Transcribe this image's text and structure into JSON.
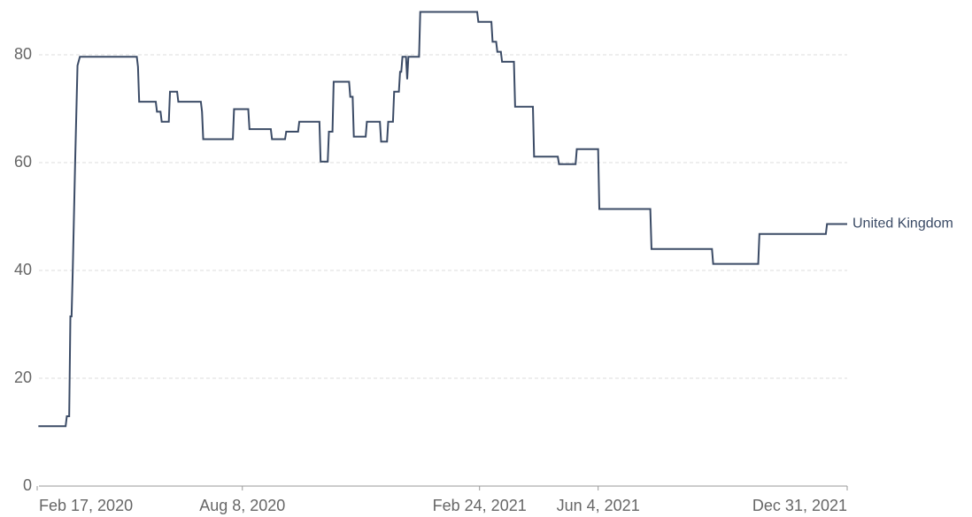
{
  "chart_data": {
    "type": "line",
    "x": [
      "2020-02-18",
      "2020-03-12",
      "2020-03-13",
      "2020-03-15",
      "2020-03-16",
      "2020-03-17",
      "2020-03-18",
      "2020-03-20",
      "2020-03-22",
      "2020-03-24",
      "2020-05-11",
      "2020-05-12",
      "2020-05-13",
      "2020-05-27",
      "2020-05-28",
      "2020-05-31",
      "2020-06-01",
      "2020-06-07",
      "2020-06-08",
      "2020-06-14",
      "2020-06-15",
      "2020-07-04",
      "2020-07-05",
      "2020-07-06",
      "2020-07-31",
      "2020-08-01",
      "2020-08-13",
      "2020-08-14",
      "2020-09-01",
      "2020-09-02",
      "2020-09-13",
      "2020-09-14",
      "2020-09-24",
      "2020-09-25",
      "2020-10-12",
      "2020-10-13",
      "2020-10-19",
      "2020-10-20",
      "2020-10-23",
      "2020-10-24",
      "2020-11-06",
      "2020-11-07",
      "2020-11-09",
      "2020-11-10",
      "2020-11-20",
      "2020-11-21",
      "2020-12-02",
      "2020-12-03",
      "2020-12-08",
      "2020-12-09",
      "2020-12-13",
      "2020-12-14",
      "2020-12-18",
      "2020-12-19",
      "2020-12-20",
      "2020-12-21",
      "2020-12-24",
      "2020-12-25",
      "2020-12-26",
      "2021-01-04",
      "2021-01-05",
      "2021-02-22",
      "2021-02-23",
      "2021-03-06",
      "2021-03-07",
      "2021-03-10",
      "2021-03-11",
      "2021-03-14",
      "2021-03-15",
      "2021-03-25",
      "2021-03-26",
      "2021-04-10",
      "2021-04-11",
      "2021-05-01",
      "2021-05-02",
      "2021-05-16",
      "2021-05-17",
      "2021-06-04",
      "2021-06-05",
      "2021-07-18",
      "2021-07-19",
      "2021-09-08",
      "2021-09-09",
      "2021-10-17",
      "2021-10-18",
      "2021-12-13",
      "2021-12-14",
      "2021-12-31"
    ],
    "series": [
      {
        "name": "United Kingdom",
        "color": "#3b4b66",
        "values": [
          11.11,
          11.11,
          12.96,
          12.96,
          31.48,
          31.48,
          40,
          60,
          78,
          79.63,
          79.63,
          77.78,
          71.3,
          71.3,
          69.44,
          69.44,
          67.59,
          67.59,
          73.15,
          73.15,
          71.3,
          71.3,
          69.44,
          64.35,
          64.35,
          69.91,
          69.91,
          66.2,
          66.2,
          64.35,
          64.35,
          65.74,
          65.74,
          67.59,
          67.59,
          60.19,
          60.19,
          65.74,
          65.74,
          75,
          75,
          72.22,
          72.22,
          64.81,
          64.81,
          67.59,
          67.59,
          63.89,
          63.89,
          67.59,
          67.59,
          73.15,
          73.15,
          76.85,
          76.85,
          79.63,
          79.63,
          75.46,
          79.63,
          79.63,
          87.96,
          87.96,
          86.11,
          86.11,
          82.41,
          82.41,
          80.56,
          80.56,
          78.7,
          78.7,
          70.37,
          70.37,
          61.11,
          61.11,
          59.72,
          59.72,
          62.5,
          62.5,
          51.39,
          51.39,
          43.98,
          43.98,
          41.2,
          41.2,
          46.76,
          46.76,
          48.61,
          48.61
        ]
      }
    ],
    "xlim": [
      "2020-02-17",
      "2021-12-31"
    ],
    "xticks": [
      {
        "value": "2020-02-17",
        "label": "Feb 17, 2020"
      },
      {
        "value": "2020-08-08",
        "label": "Aug 8, 2020"
      },
      {
        "value": "2021-02-24",
        "label": "Feb 24, 2021"
      },
      {
        "value": "2021-06-04",
        "label": "Jun 4, 2021"
      },
      {
        "value": "2021-12-31",
        "label": "Dec 31, 2021"
      }
    ],
    "ylim": [
      0,
      90
    ],
    "yticks": [
      0,
      20,
      40,
      60,
      80
    ],
    "grid": true
  }
}
